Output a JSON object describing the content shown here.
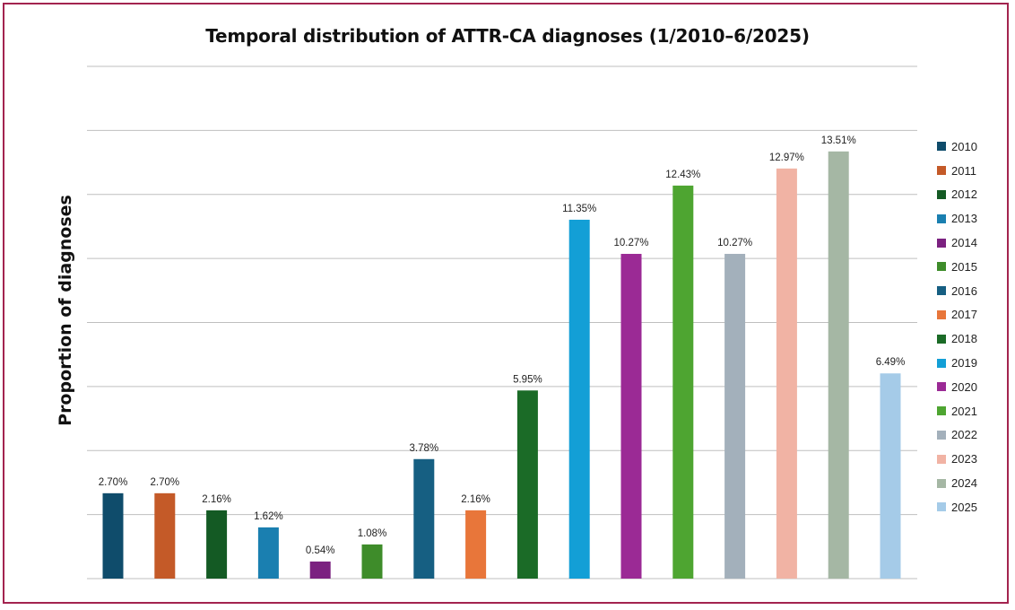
{
  "chart_data": {
    "type": "bar",
    "title": "Temporal distribution of ATTR-CA diagnoses (1/2010–6/2025)",
    "xlabel": "",
    "ylabel": "Proportion of diagnoses",
    "ylim": [
      0,
      16.2
    ],
    "grid": true,
    "legend_position": "right",
    "categories": [
      "2010",
      "2011",
      "2012",
      "2013",
      "2014",
      "2015",
      "2016",
      "2017",
      "2018",
      "2019",
      "2020",
      "2021",
      "2022",
      "2023",
      "2024",
      "2025"
    ],
    "values": [
      2.7,
      2.7,
      2.16,
      1.62,
      0.54,
      1.08,
      3.78,
      2.16,
      5.95,
      11.35,
      10.27,
      12.43,
      10.27,
      12.97,
      13.51,
      6.49
    ],
    "data_labels": [
      "2.70%",
      "2.70%",
      "2.16%",
      "1.62%",
      "0.54%",
      "1.08%",
      "3.78%",
      "2.16%",
      "5.95%",
      "11.35%",
      "10.27%",
      "12.43%",
      "10.27%",
      "12.97%",
      "13.51%",
      "6.49%"
    ],
    "colors": [
      "#0f4c6b",
      "#c45a28",
      "#145a24",
      "#1a7fb0",
      "#7b2180",
      "#3e8c2a",
      "#165f82",
      "#e8763a",
      "#1b6b27",
      "#139fd6",
      "#9b2a95",
      "#4ea531",
      "#a3b0bb",
      "#f1b3a4",
      "#a5b7a4",
      "#a5cbe8"
    ]
  }
}
